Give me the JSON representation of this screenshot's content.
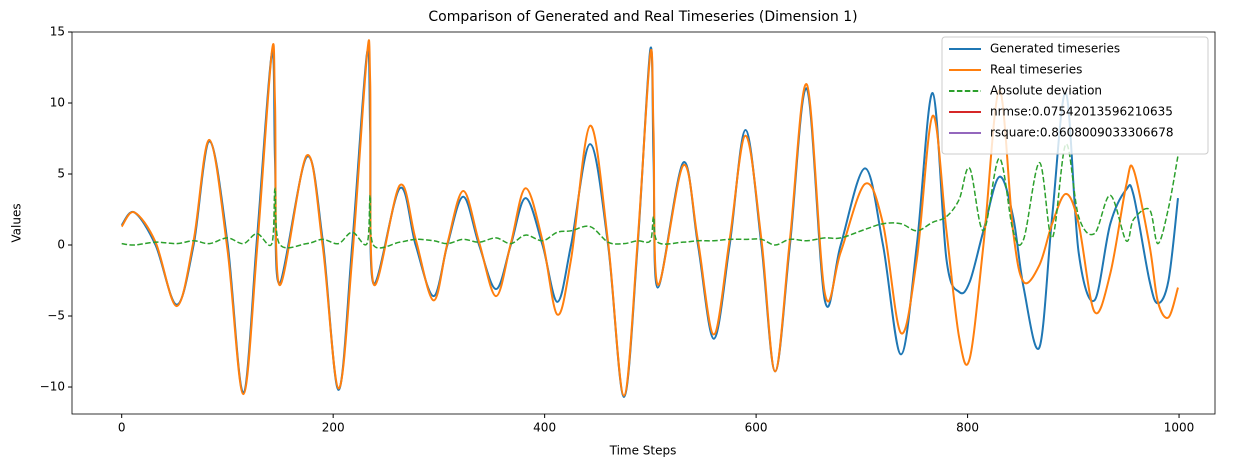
{
  "chart_data": {
    "type": "line",
    "title": "Comparison of Generated and Real Timeseries (Dimension 1)",
    "x_label": "Time Steps",
    "y_label": "Values",
    "x": [
      0,
      12,
      32,
      52,
      68,
      83,
      100,
      115,
      128,
      142,
      145,
      149,
      175,
      190,
      205,
      218,
      232,
      235,
      238,
      263,
      278,
      295,
      308,
      323,
      338,
      354,
      368,
      382,
      398,
      412,
      425,
      443,
      460,
      475,
      488,
      500,
      503,
      507,
      531,
      545,
      560,
      575,
      590,
      605,
      618,
      632,
      648,
      665,
      680,
      703,
      720,
      737,
      752,
      767,
      780,
      792,
      802,
      815,
      830,
      843,
      853,
      868,
      880,
      893,
      905,
      920,
      935,
      950,
      957,
      972,
      980,
      990,
      999
    ],
    "series": [
      {
        "name": "Generated timeseries",
        "color": "#1f77b4",
        "dash": false,
        "values": [
          1.4,
          2.3,
          0,
          -4.2,
          0,
          7.3,
          0.2,
          -10.4,
          0.5,
          13.5,
          6,
          -2.7,
          6.2,
          0.4,
          -10.2,
          0,
          13.5,
          8,
          -2.7,
          4.0,
          0,
          -3.6,
          0,
          3.4,
          0,
          -3.1,
          0,
          3.3,
          0,
          -4.0,
          0,
          7.1,
          0,
          -10.7,
          0,
          13.8,
          6,
          -3.0,
          5.8,
          0,
          -6.6,
          0,
          8.1,
          0,
          -8.9,
          0,
          11.0,
          -3.9,
          0,
          5.4,
          0,
          -7.7,
          0,
          10.7,
          -1,
          -3.3,
          -2.6,
          1,
          4.8,
          2,
          -3,
          -7.2,
          2,
          10.7,
          -0.5,
          -3.9,
          1.5,
          3.9,
          3.5,
          -2.5,
          -4.1,
          -2.5,
          3.3
        ]
      },
      {
        "name": "Real timeseries",
        "color": "#ff7f0e",
        "dash": false,
        "values": [
          1.3,
          2.3,
          0.2,
          -4.3,
          0.3,
          7.4,
          -0.3,
          -10.5,
          -0.3,
          13.6,
          10,
          -2.8,
          6.3,
          0,
          -10.1,
          -0.9,
          13.4,
          11.5,
          -2.7,
          4.2,
          0.4,
          -3.9,
          0.1,
          3.8,
          0.2,
          -3.6,
          0.1,
          4.0,
          0.3,
          -4.9,
          -1.0,
          8.4,
          0.2,
          -10.6,
          0.3,
          13.5,
          8,
          -2.8,
          5.6,
          0.3,
          -6.3,
          0.4,
          7.7,
          0.4,
          -8.9,
          0.4,
          11.3,
          -3.4,
          -0.5,
          4.3,
          1.5,
          -6.2,
          -1.0,
          9.1,
          1,
          -6.5,
          -8.0,
          0,
          10.9,
          1,
          -2.6,
          -1.4,
          1.5,
          3.6,
          1.5,
          -4.7,
          -2,
          4.2,
          5.3,
          0,
          -4.0,
          -5.1,
          -3.0
        ]
      },
      {
        "name": "Absolute deviation",
        "color": "#2ca02c",
        "dash": true,
        "values": [
          0.1,
          0.0,
          0.2,
          0.1,
          0.3,
          0.1,
          0.5,
          0.1,
          0.8,
          0.1,
          4,
          0.1,
          0.1,
          0.4,
          0.1,
          0.9,
          0.1,
          3.5,
          0,
          0.2,
          0.4,
          0.3,
          0.1,
          0.4,
          0.2,
          0.5,
          0.1,
          0.7,
          0.3,
          0.9,
          1.0,
          1.3,
          0.2,
          0.1,
          0.3,
          0.3,
          2,
          0.2,
          0.2,
          0.3,
          0.3,
          0.4,
          0.4,
          0.4,
          0,
          0.4,
          0.3,
          0.5,
          0.5,
          1.1,
          1.5,
          1.5,
          1.0,
          1.6,
          2,
          3.2,
          5.4,
          1,
          6.1,
          1,
          0.4,
          5.8,
          0.5,
          7.1,
          2,
          0.8,
          3.5,
          0.3,
          1.8,
          2.5,
          0.1,
          2.6,
          6.3
        ]
      }
    ],
    "legend_extras": [
      {
        "name": "nrmse:0.07542013596210635",
        "color": "#d62728"
      },
      {
        "name": "rsquare:0.8608009033306678",
        "color": "#9467bd"
      }
    ],
    "legend": "upper right",
    "xlim": [
      -47,
      1034
    ],
    "ylim": [
      -11.9,
      15
    ],
    "xticks": [
      0,
      200,
      400,
      600,
      800,
      1000
    ],
    "yticks": [
      {
        "value": -10,
        "label": "−10"
      },
      {
        "value": -5,
        "label": "−5"
      },
      0,
      5,
      10,
      15
    ]
  }
}
